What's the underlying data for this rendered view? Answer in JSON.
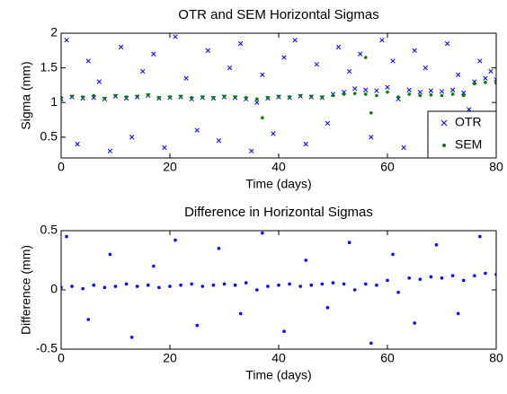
{
  "chart_data": [
    {
      "type": "scatter",
      "title": "OTR and SEM Horizontal Sigmas",
      "xlabel": "Time (days)",
      "ylabel": "Sigma (mm)",
      "xlim": [
        0,
        80
      ],
      "ylim": [
        0.2,
        2
      ],
      "xticks": [
        0,
        20,
        40,
        60,
        80
      ],
      "yticks": [
        0.5,
        1,
        1.5,
        2
      ],
      "legend": "lower right",
      "series": [
        {
          "name": "OTR",
          "color": "#0000ff",
          "marker": "x",
          "x": [
            0,
            2,
            4,
            6,
            8,
            10,
            12,
            14,
            16,
            18,
            20,
            22,
            24,
            26,
            28,
            30,
            32,
            34,
            36,
            38,
            40,
            42,
            44,
            46,
            48,
            50,
            52,
            54,
            56,
            58,
            60,
            62,
            64,
            66,
            68,
            70,
            72,
            74,
            76,
            78,
            80,
            1,
            3,
            5,
            7,
            9,
            11,
            13,
            15,
            17,
            19,
            21,
            23,
            25,
            27,
            29,
            31,
            33,
            35,
            37,
            39,
            41,
            43,
            45,
            47,
            49,
            51,
            53,
            55,
            57,
            59,
            61,
            63,
            65,
            67,
            69,
            71,
            73,
            75,
            77,
            79
          ],
          "values": [
            1.05,
            1.08,
            1.06,
            1.07,
            1.05,
            1.09,
            1.06,
            1.08,
            1.1,
            1.06,
            1.07,
            1.08,
            1.05,
            1.07,
            1.06,
            1.08,
            1.07,
            1.05,
            1.0,
            1.06,
            1.08,
            1.07,
            1.09,
            1.08,
            1.07,
            1.12,
            1.15,
            1.2,
            1.18,
            1.17,
            1.22,
            1.05,
            1.18,
            1.15,
            1.17,
            1.16,
            1.18,
            1.14,
            1.3,
            1.35,
            1.33,
            1.9,
            0.4,
            1.6,
            1.3,
            0.3,
            1.8,
            0.5,
            1.45,
            1.7,
            0.35,
            1.95,
            1.35,
            0.6,
            1.75,
            0.45,
            1.5,
            1.85,
            0.3,
            1.4,
            0.55,
            1.65,
            1.9,
            0.4,
            1.55,
            0.7,
            1.8,
            1.45,
            1.7,
            0.5,
            1.9,
            1.6,
            0.35,
            1.75,
            1.5,
            0.6,
            1.85,
            1.4,
            0.9,
            1.6,
            1.45
          ]
        },
        {
          "name": "SEM",
          "color": "#008000",
          "marker": "dot",
          "x": [
            0,
            2,
            4,
            6,
            8,
            10,
            12,
            14,
            16,
            18,
            20,
            22,
            24,
            26,
            28,
            30,
            32,
            34,
            36,
            38,
            40,
            42,
            44,
            46,
            48,
            50,
            52,
            54,
            56,
            58,
            60,
            62,
            64,
            66,
            68,
            70,
            72,
            74,
            76,
            78,
            80,
            37,
            57,
            56
          ],
          "values": [
            1.07,
            1.09,
            1.08,
            1.1,
            1.06,
            1.1,
            1.08,
            1.09,
            1.11,
            1.07,
            1.08,
            1.09,
            1.07,
            1.08,
            1.07,
            1.09,
            1.08,
            1.07,
            1.05,
            1.07,
            1.09,
            1.08,
            1.1,
            1.09,
            1.08,
            1.1,
            1.12,
            1.13,
            1.12,
            1.1,
            1.15,
            1.08,
            1.12,
            1.1,
            1.11,
            1.1,
            1.12,
            1.1,
            1.27,
            1.29,
            1.28,
            0.78,
            0.85,
            1.65
          ]
        }
      ]
    },
    {
      "type": "scatter",
      "title": "Difference in Horizontal Sigmas",
      "xlabel": "Time (days)",
      "ylabel": "Difference (mm)",
      "xlim": [
        0,
        80
      ],
      "ylim": [
        -0.5,
        0.5
      ],
      "xticks": [
        0,
        20,
        40,
        60,
        80
      ],
      "yticks": [
        -0.5,
        0,
        0.5
      ],
      "series": [
        {
          "color": "#0000ff",
          "marker": "dot",
          "x": [
            0,
            2,
            4,
            6,
            8,
            10,
            12,
            14,
            16,
            18,
            20,
            22,
            24,
            26,
            28,
            30,
            32,
            34,
            36,
            38,
            40,
            42,
            44,
            46,
            48,
            50,
            52,
            54,
            56,
            58,
            60,
            62,
            64,
            66,
            68,
            70,
            72,
            74,
            76,
            78,
            80,
            1,
            5,
            9,
            13,
            17,
            21,
            25,
            29,
            33,
            37,
            41,
            45,
            49,
            53,
            57,
            61,
            65,
            69,
            73,
            77
          ],
          "values": [
            0.02,
            0.03,
            0.01,
            0.04,
            0.02,
            0.03,
            0.05,
            0.03,
            0.04,
            0.02,
            0.03,
            0.04,
            0.05,
            0.03,
            0.04,
            0.05,
            0.04,
            0.06,
            0.0,
            0.03,
            0.04,
            0.05,
            0.03,
            0.04,
            0.05,
            0.06,
            0.05,
            0.0,
            0.05,
            0.04,
            0.08,
            -0.02,
            0.1,
            0.09,
            0.11,
            0.1,
            0.12,
            0.08,
            0.12,
            0.14,
            0.13,
            0.45,
            -0.25,
            0.3,
            -0.4,
            0.2,
            0.42,
            -0.3,
            0.35,
            -0.2,
            0.48,
            -0.35,
            0.25,
            -0.15,
            0.4,
            -0.45,
            0.3,
            -0.28,
            0.38,
            -0.2,
            0.45
          ]
        }
      ]
    }
  ]
}
